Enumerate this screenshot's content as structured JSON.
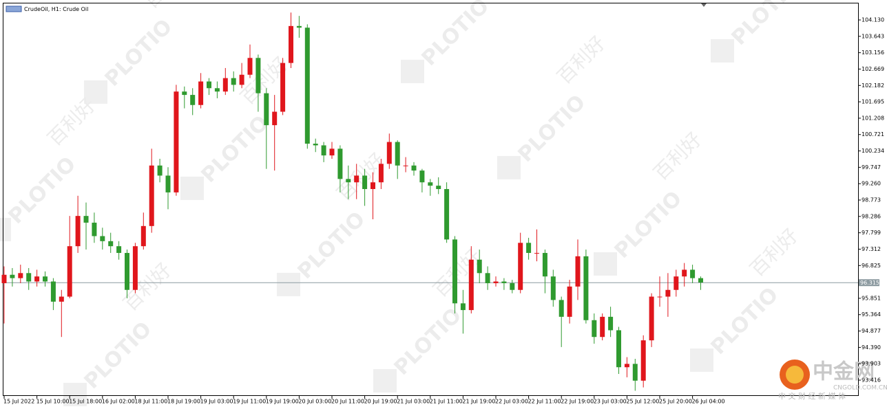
{
  "chart_data": {
    "type": "candlestick",
    "title": "CrudeOil, H1:  Crude Oil",
    "up_color": "#e0161c",
    "down_color": "#2f9a2f",
    "grid": false,
    "current_price": 96.315,
    "ylim": [
      92.946,
      104.621
    ],
    "yticks": [
      {
        "value": 104.13,
        "label": "104.130"
      },
      103.643,
      103.156,
      102.669,
      102.182,
      101.695,
      101.208,
      100.721,
      100.234,
      99.747,
      {
        "value": 99.26,
        "label": "99.260"
      },
      98.773,
      98.286,
      97.799,
      97.312,
      96.825,
      95.851,
      95.364,
      94.877,
      {
        "value": 94.39,
        "label": "94.390"
      },
      93.903,
      93.416
    ],
    "categories": [
      "15 Jul 2022",
      null,
      null,
      null,
      "15 Jul 10:00",
      null,
      null,
      null,
      "15 Jul 18:00",
      null,
      null,
      null,
      "16 Jul 02:00",
      null,
      null,
      null,
      "18 Jul 11:00",
      null,
      null,
      null,
      "18 Jul 19:00",
      null,
      null,
      null,
      "19 Jul 03:00",
      null,
      null,
      null,
      "19 Jul 11:00",
      null,
      null,
      null,
      "19 Jul 19:00",
      null,
      null,
      null,
      "20 Jul 03:00",
      null,
      null,
      null,
      "20 Jul 11:00",
      null,
      null,
      null,
      "20 Jul 19:00",
      null,
      null,
      null,
      "21 Jul 03:00",
      null,
      null,
      null,
      "21 Jul 11:00",
      null,
      null,
      null,
      "21 Jul 19:00",
      null,
      null,
      null,
      "22 Jul 03:00",
      null,
      null,
      null,
      "22 Jul 11:00",
      null,
      null,
      null,
      "22 Jul 19:00",
      null,
      null,
      null,
      "23 Jul 03:00",
      null,
      null,
      null,
      "25 Jul 12:00",
      null,
      null,
      null,
      "25 Jul 20:00",
      null,
      null,
      null,
      "26 Jul 04:00",
      null
    ],
    "open": [
      96.3,
      96.55,
      96.45,
      96.6,
      96.35,
      96.5,
      96.35,
      95.75,
      95.9,
      97.4,
      98.3,
      98.1,
      97.7,
      97.55,
      97.4,
      97.2,
      96.1,
      97.4,
      98.0,
      99.8,
      99.5,
      99.0,
      102.0,
      101.9,
      101.6,
      102.3,
      102.1,
      102.0,
      102.4,
      102.2,
      102.5,
      103.0,
      101.95,
      101.0,
      101.4,
      102.85,
      103.95,
      103.9,
      100.45,
      100.4,
      100.1,
      100.3,
      99.4,
      99.3,
      99.5,
      99.1,
      99.3,
      99.85,
      100.5,
      99.8,
      99.8,
      99.65,
      99.3,
      99.2,
      99.1,
      97.6,
      95.7,
      95.5,
      97.0,
      96.6,
      96.3,
      96.35,
      96.3,
      96.1,
      97.5,
      97.2,
      97.2,
      96.5,
      95.8,
      95.3,
      96.2,
      97.1,
      95.2,
      94.7,
      95.3,
      94.9,
      93.8,
      93.9,
      93.4,
      94.6,
      95.9,
      95.9,
      96.1,
      96.5,
      96.7,
      96.45
    ],
    "high": [
      96.8,
      96.75,
      96.85,
      96.75,
      96.7,
      96.65,
      96.45,
      96.1,
      98.3,
      98.9,
      98.7,
      98.4,
      97.95,
      97.8,
      97.55,
      97.3,
      97.5,
      98.4,
      100.3,
      100.0,
      99.75,
      102.2,
      102.15,
      102.1,
      102.55,
      102.4,
      102.3,
      102.7,
      102.6,
      102.85,
      103.4,
      103.1,
      102.1,
      101.9,
      103.0,
      104.35,
      104.25,
      104.0,
      100.6,
      100.5,
      100.5,
      100.4,
      99.8,
      99.85,
      99.7,
      99.6,
      100.0,
      100.75,
      100.55,
      100.05,
      99.9,
      99.7,
      99.4,
      99.45,
      99.3,
      97.7,
      96.1,
      97.4,
      97.3,
      96.8,
      96.5,
      96.45,
      96.4,
      97.8,
      97.65,
      97.9,
      97.3,
      96.7,
      95.9,
      96.4,
      97.6,
      97.3,
      95.4,
      95.4,
      95.6,
      95.0,
      94.1,
      94.05,
      94.75,
      96.0,
      96.5,
      96.6,
      96.7,
      96.9,
      96.85,
      96.5
    ],
    "low": [
      95.1,
      96.2,
      96.3,
      96.1,
      96.2,
      96.2,
      95.5,
      94.7,
      95.85,
      97.2,
      97.3,
      97.5,
      97.3,
      97.2,
      97.0,
      95.85,
      96.0,
      97.3,
      97.8,
      99.3,
      98.5,
      98.9,
      101.5,
      101.3,
      101.5,
      101.9,
      101.8,
      101.9,
      102.0,
      102.1,
      102.4,
      101.4,
      99.7,
      99.65,
      101.3,
      102.7,
      103.6,
      100.3,
      100.2,
      99.9,
      100.0,
      99.0,
      98.8,
      98.8,
      98.6,
      98.2,
      99.1,
      99.7,
      99.4,
      99.6,
      99.5,
      99.0,
      98.9,
      98.95,
      97.5,
      95.4,
      94.8,
      95.4,
      96.3,
      96.1,
      96.2,
      96.1,
      96.0,
      96.0,
      97.0,
      96.95,
      96.0,
      95.6,
      94.4,
      95.1,
      95.8,
      95.1,
      94.5,
      94.6,
      94.7,
      93.6,
      93.5,
      93.1,
      93.2,
      94.4,
      95.6,
      95.3,
      95.9,
      96.2,
      96.3,
      96.1
    ],
    "close": [
      96.55,
      96.45,
      96.6,
      96.35,
      96.5,
      96.35,
      95.75,
      95.9,
      97.4,
      98.3,
      98.1,
      97.7,
      97.55,
      97.4,
      97.2,
      96.1,
      97.4,
      98.0,
      99.8,
      99.5,
      99.0,
      102.0,
      101.9,
      101.6,
      102.3,
      102.1,
      102.0,
      102.4,
      102.2,
      102.5,
      103.0,
      101.95,
      101.0,
      101.4,
      102.85,
      103.95,
      103.9,
      100.45,
      100.4,
      100.1,
      100.3,
      99.4,
      99.3,
      99.5,
      99.1,
      99.3,
      99.85,
      100.5,
      99.8,
      99.8,
      99.65,
      99.3,
      99.2,
      99.1,
      97.6,
      95.7,
      95.5,
      97.0,
      96.6,
      96.3,
      96.35,
      96.3,
      96.1,
      97.5,
      97.2,
      97.2,
      96.5,
      95.8,
      95.3,
      96.2,
      97.1,
      95.2,
      94.7,
      95.3,
      94.9,
      93.8,
      93.9,
      93.4,
      94.6,
      95.9,
      95.9,
      96.1,
      96.5,
      96.7,
      96.45,
      96.32
    ]
  },
  "watermark": {
    "brand": "PLOTIO",
    "name": "百利好"
  },
  "logo": {
    "name": "中金网",
    "site": "CNGOLD.COM.CN",
    "slogan": "中 文 财 经 新 媒 体"
  }
}
